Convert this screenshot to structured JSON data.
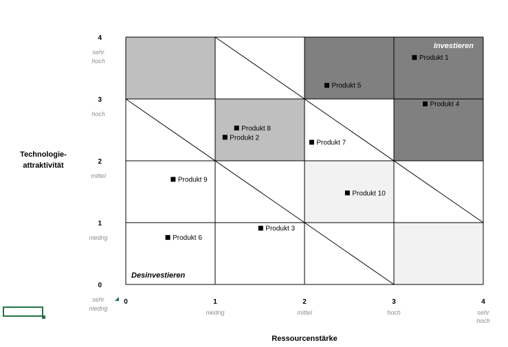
{
  "chart_data": {
    "type": "scatter",
    "xlabel": "Ressourcenstärke",
    "ylabel": "Technologie-\nattraktivität",
    "xlim": [
      0,
      4
    ],
    "ylim": [
      0,
      4
    ],
    "x_ticks": [
      {
        "value": 0,
        "label": "0",
        "word": ""
      },
      {
        "value": 1,
        "label": "1",
        "word": "niedrig"
      },
      {
        "value": 2,
        "label": "2",
        "word": "mittel"
      },
      {
        "value": 3,
        "label": "3",
        "word": "hoch"
      },
      {
        "value": 4,
        "label": "4",
        "word": "sehr\nhoch"
      }
    ],
    "y_ticks": [
      {
        "value": 0,
        "label": "0",
        "word": "sehr\nniedrig"
      },
      {
        "value": 1,
        "label": "1",
        "word": "niedrig"
      },
      {
        "value": 2,
        "label": "2",
        "word": "mittel"
      },
      {
        "value": 3,
        "label": "3",
        "word": "hoch"
      },
      {
        "value": 4,
        "label": "4",
        "word": "sehr\nhoch"
      }
    ],
    "grid": true,
    "cells": [
      {
        "x0": 0,
        "y0": 3,
        "shade": "#bfbfbf"
      },
      {
        "x0": 1,
        "y0": 2,
        "shade": "#bfbfbf"
      },
      {
        "x0": 2,
        "y0": 3,
        "shade": "#808080"
      },
      {
        "x0": 3,
        "y0": 3,
        "shade": "#808080"
      },
      {
        "x0": 3,
        "y0": 2,
        "shade": "#808080"
      },
      {
        "x0": 2,
        "y0": 1,
        "shade": "#f2f2f2"
      },
      {
        "x0": 3,
        "y0": 0,
        "shade": "#f2f2f2"
      }
    ],
    "diagonals": [
      {
        "from": [
          0,
          3
        ],
        "to": [
          3,
          0
        ]
      },
      {
        "from": [
          1,
          4
        ],
        "to": [
          4,
          1
        ]
      }
    ],
    "points": [
      {
        "name": "Produkt 1",
        "x": 3.23,
        "y": 3.67
      },
      {
        "name": "Produkt 5",
        "x": 2.25,
        "y": 3.22
      },
      {
        "name": "Produkt 4",
        "x": 3.35,
        "y": 2.92
      },
      {
        "name": "Produkt 8",
        "x": 1.24,
        "y": 2.53
      },
      {
        "name": "Produkt 2",
        "x": 1.11,
        "y": 2.38
      },
      {
        "name": "Produkt 7",
        "x": 2.08,
        "y": 2.3
      },
      {
        "name": "Produkt 9",
        "x": 0.53,
        "y": 1.7
      },
      {
        "name": "Produkt 10",
        "x": 2.48,
        "y": 1.48
      },
      {
        "name": "Produkt 3",
        "x": 1.51,
        "y": 0.91
      },
      {
        "name": "Produkt 6",
        "x": 0.47,
        "y": 0.76
      }
    ],
    "corner_labels": {
      "top_right": "Investieren",
      "bottom_left": "Desinvestieren"
    },
    "colors": {
      "marker": "#000000",
      "grid": "#000000",
      "tick_word": "#8c8c8c",
      "investieren_text": "#ffffff",
      "desinvestieren_text": "#000000"
    }
  }
}
